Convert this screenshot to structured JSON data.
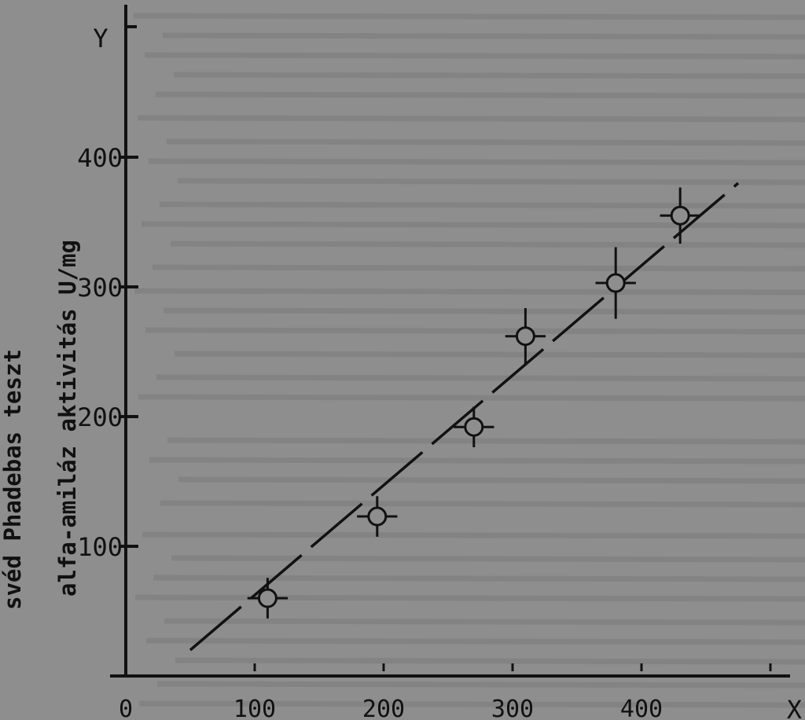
{
  "chart_data": {
    "type": "scatter",
    "ylabel_lines": [
      "svéd Phadebas teszt",
      "alfa-amiláz aktivitás U/mg"
    ],
    "xlabel": "X",
    "y_axis_letter": "Y",
    "xlim": [
      0,
      500
    ],
    "ylim": [
      0,
      420
    ],
    "x_tick_labels": [
      {
        "value": 0,
        "text": "0"
      },
      {
        "value": 100,
        "text": "100"
      },
      {
        "value": 200,
        "text": "200"
      },
      {
        "value": 300,
        "text": "300"
      },
      {
        "value": 400,
        "text": "400"
      }
    ],
    "x_tick_marks": [
      100,
      200,
      300,
      400,
      500
    ],
    "y_ticks": [
      100,
      200,
      300,
      400
    ],
    "grid": false,
    "series": [
      {
        "points": [
          {
            "x": 110,
            "y": 60,
            "x_err": 12,
            "y_err": 12
          },
          {
            "x": 195,
            "y": 123,
            "x_err": 12,
            "y_err": 12
          },
          {
            "x": 270,
            "y": 192,
            "x_err": 12,
            "y_err": 12
          },
          {
            "x": 310,
            "y": 262,
            "x_err": 12,
            "y_err": 18
          },
          {
            "x": 380,
            "y": 303,
            "x_err": 12,
            "y_err": 24
          },
          {
            "x": 430,
            "y": 355,
            "x_err": 12,
            "y_err": 18
          }
        ]
      }
    ],
    "fit_line": {
      "x": [
        50,
        475
      ],
      "y": [
        20,
        380
      ],
      "style": "dashed"
    }
  }
}
